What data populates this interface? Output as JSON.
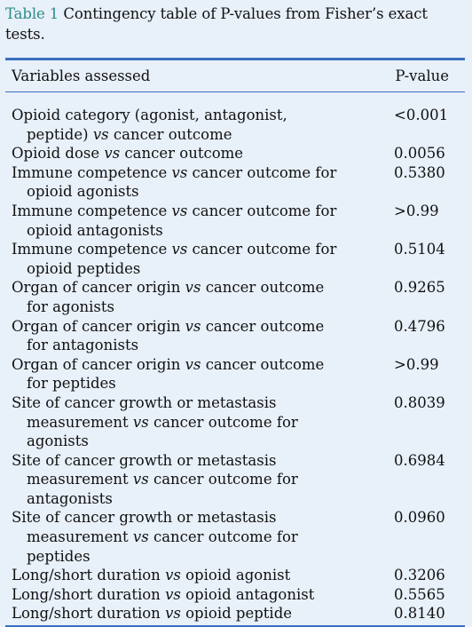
{
  "caption": {
    "label": "Table 1",
    "text_line1": " Contingency table of P-values from Fisher’s exact",
    "text_line2": "tests."
  },
  "header": {
    "col_variables": "Variables assessed",
    "col_pvalue": "P-value"
  },
  "rows": [
    {
      "lines": [
        "Opioid category (agonist, antagonist,",
        "peptide) vs cancer outcome"
      ],
      "p": "<0.001"
    },
    {
      "lines": [
        "Opioid dose vs cancer outcome"
      ],
      "p": "0.0056"
    },
    {
      "lines": [
        "Immune competence vs cancer outcome for",
        "opioid agonists"
      ],
      "p": "0.5380"
    },
    {
      "lines": [
        "Immune competence vs cancer outcome for",
        "opioid antagonists"
      ],
      "p": ">0.99"
    },
    {
      "lines": [
        "Immune competence vs cancer outcome for",
        "opioid peptides"
      ],
      "p": "0.5104"
    },
    {
      "lines": [
        "Organ of cancer origin vs cancer outcome",
        "for agonists"
      ],
      "p": "0.9265"
    },
    {
      "lines": [
        "Organ of cancer origin vs cancer outcome",
        "for antagonists"
      ],
      "p": "0.4796"
    },
    {
      "lines": [
        "Organ of cancer origin vs cancer outcome",
        "for peptides"
      ],
      "p": ">0.99"
    },
    {
      "lines": [
        "Site of cancer growth or metastasis",
        "measurement vs cancer outcome for",
        "agonists"
      ],
      "p": "0.8039"
    },
    {
      "lines": [
        "Site of cancer growth or metastasis",
        "measurement vs cancer outcome for",
        "antagonists"
      ],
      "p": "0.6984"
    },
    {
      "lines": [
        "Site of cancer growth or metastasis",
        "measurement vs cancer outcome for",
        "peptides"
      ],
      "p": "0.0960"
    },
    {
      "lines": [
        "Long/short duration vs opioid agonist"
      ],
      "p": "0.3206"
    },
    {
      "lines": [
        "Long/short duration vs opioid antagonist"
      ],
      "p": "0.5565"
    },
    {
      "lines": [
        "Long/short duration vs opioid peptide"
      ],
      "p": "0.8140"
    }
  ],
  "colors": {
    "label": "#2e8b8a",
    "rule": "#3a6fbf",
    "background": "#e8f0f9"
  }
}
